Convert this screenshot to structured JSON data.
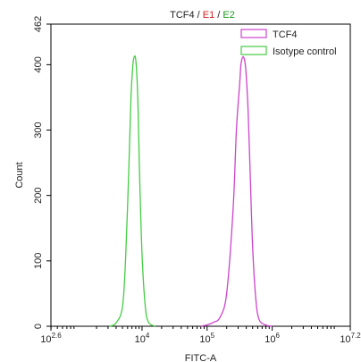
{
  "chart_data": {
    "type": "line",
    "title_parts": [
      {
        "text": "TCF4",
        "color": "#222222"
      },
      {
        "text": " / ",
        "color": "#222222"
      },
      {
        "text": "E1",
        "color": "#d42020"
      },
      {
        "text": " / ",
        "color": "#222222"
      },
      {
        "text": "E2",
        "color": "#1a9a1a"
      }
    ],
    "xlabel": "FITC-A",
    "ylabel": "Count",
    "x_scale": "log10",
    "xlim": [
      2.6,
      7.2
    ],
    "ylim": [
      0,
      462
    ],
    "x_ticks": [
      {
        "base": "10",
        "exp": "2.6",
        "pos": 2.6
      },
      {
        "base": "10",
        "exp": "4",
        "pos": 4
      },
      {
        "base": "10",
        "exp": "5",
        "pos": 5
      },
      {
        "base": "10",
        "exp": "6",
        "pos": 6
      },
      {
        "base": "10",
        "exp": "7.2",
        "pos": 7.2
      }
    ],
    "y_ticks": [
      "0",
      "100",
      "200",
      "300",
      "400",
      "462"
    ],
    "y_tick_values": [
      0,
      100,
      200,
      300,
      400,
      462
    ],
    "legend_position": "top-right",
    "series": [
      {
        "name": "TCF4",
        "color": "#cc44cc",
        "x": [
          4.9,
          5.0,
          5.1,
          5.2,
          5.3,
          5.4,
          5.45,
          5.5,
          5.52,
          5.55,
          5.58,
          5.6,
          5.63,
          5.66,
          5.7,
          5.75,
          5.8,
          5.9,
          6.0
        ],
        "y": [
          0,
          2,
          6,
          14,
          50,
          180,
          300,
          370,
          400,
          412,
          405,
          385,
          330,
          240,
          120,
          40,
          10,
          2,
          0
        ]
      },
      {
        "name": "Isotype control",
        "color": "#44cc44",
        "x": [
          3.5,
          3.6,
          3.7,
          3.75,
          3.8,
          3.83,
          3.86,
          3.88,
          3.9,
          3.92,
          3.94,
          3.96,
          4.0,
          4.05,
          4.1,
          4.2
        ],
        "y": [
          0,
          5,
          30,
          110,
          250,
          350,
          400,
          412,
          410,
          385,
          330,
          240,
          110,
          30,
          6,
          0
        ]
      }
    ]
  }
}
